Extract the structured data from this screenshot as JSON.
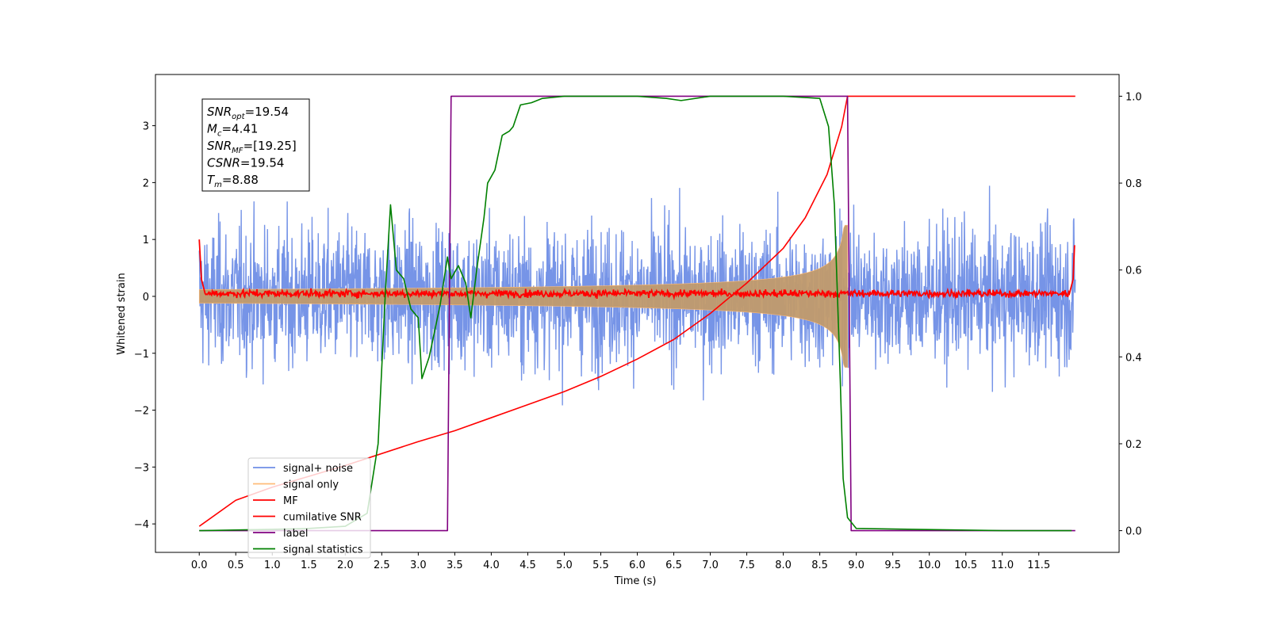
{
  "chart_data": {
    "type": "line",
    "xlabel": "Time (s)",
    "ylabel": "Whitened strain",
    "xlim": [
      -0.6,
      12.6
    ],
    "ylim": [
      -4.5,
      3.9
    ],
    "ylim_right": [
      -0.05,
      1.05
    ],
    "x_ticks": [
      "0.0",
      "0.5",
      "1.0",
      "1.5",
      "2.0",
      "2.5",
      "3.0",
      "3.5",
      "4.0",
      "4.5",
      "5.0",
      "5.5",
      "6.0",
      "6.5",
      "7.0",
      "7.5",
      "8.0",
      "8.5",
      "9.0",
      "9.5",
      "10.0",
      "10.5",
      "11.0",
      "11.5"
    ],
    "y_ticks_left": [
      "3",
      "2",
      "1",
      "0",
      "−1",
      "−2",
      "−3",
      "−4"
    ],
    "y_ticks_right": [
      "1.0",
      "0.8",
      "0.6",
      "0.4",
      "0.2",
      "0.0"
    ],
    "grid": false,
    "legend_position": "lower-left",
    "annotation": {
      "lines": [
        {
          "var": "SNR",
          "sub": "opt",
          "text": "=19.54"
        },
        {
          "var": "M",
          "sub": "c",
          "text": "=4.41"
        },
        {
          "var": "SNR",
          "sub": "MF",
          "text": "=[19.25]"
        },
        {
          "var": "CSNR",
          "sub": "",
          "text": "=19.54"
        },
        {
          "var": "T",
          "sub": "m",
          "text": "=8.88"
        }
      ]
    },
    "series": [
      {
        "name": "signal+ noise",
        "color": "#6f8ee6",
        "axis": "left",
        "kind": "noise",
        "amplitude": 2.9,
        "x_range": [
          0.0,
          12.0
        ]
      },
      {
        "name": "signal only",
        "color": "#ffbb78",
        "axis": "left",
        "kind": "chirp",
        "t_merger": 8.88
      },
      {
        "name": "MF",
        "color": "#ff0000",
        "axis": "left",
        "kind": "matched-filter",
        "points": [
          [
            0.0,
            1.0
          ],
          [
            0.03,
            0.3
          ],
          [
            0.08,
            0.05
          ],
          [
            11.92,
            0.05
          ],
          [
            11.97,
            0.3
          ],
          [
            11.99,
            0.9
          ]
        ]
      },
      {
        "name": "cumilative SNR",
        "color": "#ff0000",
        "axis": "right",
        "points": [
          [
            0.0,
            0.01
          ],
          [
            0.5,
            0.07
          ],
          [
            1.0,
            0.1
          ],
          [
            2.0,
            0.15
          ],
          [
            3.0,
            0.205
          ],
          [
            3.5,
            0.23
          ],
          [
            4.0,
            0.26
          ],
          [
            4.5,
            0.29
          ],
          [
            5.0,
            0.32
          ],
          [
            5.5,
            0.355
          ],
          [
            6.0,
            0.395
          ],
          [
            6.5,
            0.44
          ],
          [
            7.0,
            0.5
          ],
          [
            7.5,
            0.57
          ],
          [
            8.0,
            0.65
          ],
          [
            8.3,
            0.72
          ],
          [
            8.6,
            0.82
          ],
          [
            8.8,
            0.93
          ],
          [
            8.88,
            1.0
          ],
          [
            12.0,
            1.0
          ]
        ]
      },
      {
        "name": "label",
        "color": "#800080",
        "axis": "right",
        "points": [
          [
            0.0,
            0.0
          ],
          [
            3.4,
            0.0
          ],
          [
            3.45,
            1.0
          ],
          [
            8.88,
            1.0
          ],
          [
            8.93,
            0.0
          ],
          [
            12.0,
            0.0
          ]
        ]
      },
      {
        "name": "signal statistics",
        "color": "#008000",
        "axis": "right",
        "points": [
          [
            0.0,
            0.0
          ],
          [
            1.0,
            0.003
          ],
          [
            1.5,
            0.005
          ],
          [
            2.0,
            0.01
          ],
          [
            2.3,
            0.04
          ],
          [
            2.45,
            0.2
          ],
          [
            2.55,
            0.55
          ],
          [
            2.62,
            0.75
          ],
          [
            2.7,
            0.6
          ],
          [
            2.8,
            0.58
          ],
          [
            2.9,
            0.51
          ],
          [
            3.0,
            0.49
          ],
          [
            3.05,
            0.35
          ],
          [
            3.15,
            0.4
          ],
          [
            3.3,
            0.52
          ],
          [
            3.4,
            0.63
          ],
          [
            3.45,
            0.58
          ],
          [
            3.55,
            0.61
          ],
          [
            3.65,
            0.57
          ],
          [
            3.72,
            0.49
          ],
          [
            3.8,
            0.6
          ],
          [
            3.9,
            0.72
          ],
          [
            3.95,
            0.8
          ],
          [
            4.05,
            0.83
          ],
          [
            4.15,
            0.91
          ],
          [
            4.25,
            0.92
          ],
          [
            4.3,
            0.93
          ],
          [
            4.4,
            0.98
          ],
          [
            4.55,
            0.985
          ],
          [
            4.7,
            0.995
          ],
          [
            5.0,
            1.0
          ],
          [
            6.0,
            1.0
          ],
          [
            6.4,
            0.995
          ],
          [
            6.6,
            0.99
          ],
          [
            7.0,
            1.0
          ],
          [
            8.0,
            1.0
          ],
          [
            8.5,
            0.995
          ],
          [
            8.62,
            0.93
          ],
          [
            8.7,
            0.75
          ],
          [
            8.78,
            0.35
          ],
          [
            8.82,
            0.12
          ],
          [
            8.88,
            0.03
          ],
          [
            9.0,
            0.005
          ],
          [
            11.0,
            0.0
          ],
          [
            11.95,
            0.0
          ]
        ]
      }
    ]
  }
}
